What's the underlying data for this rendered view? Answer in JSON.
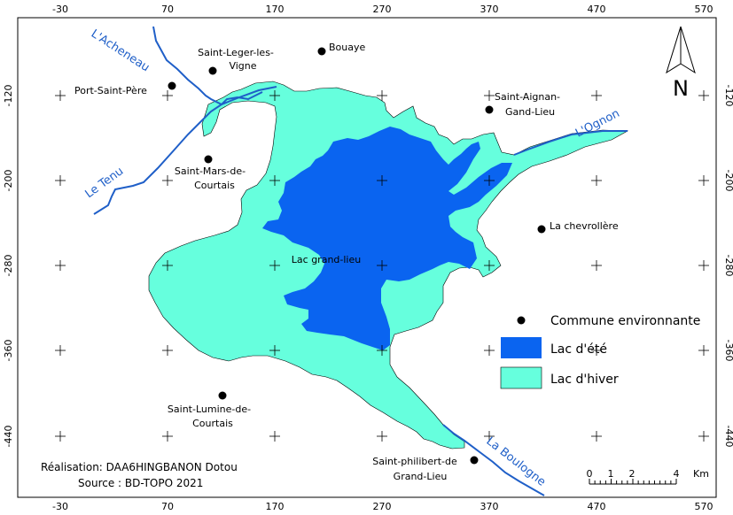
{
  "axes": {
    "x_ticks": [
      "-30",
      "70",
      "170",
      "270",
      "370",
      "470",
      "570"
    ],
    "y_ticks": [
      "-120",
      "-200",
      "-280",
      "-360",
      "-440"
    ]
  },
  "rivers": {
    "acheneau": "L'Acheneau",
    "tenu": "Le Tenu",
    "ognon": "L'Ognon",
    "boulogne": "La Boulogne"
  },
  "communes": [
    {
      "name_lines": [
        "Saint-Leger-les-",
        "Vigne"
      ]
    },
    {
      "name_lines": [
        "Bouaye"
      ]
    },
    {
      "name_lines": [
        "Port-Saint-Père"
      ]
    },
    {
      "name_lines": [
        "Saint-Aignan-",
        "Gand-Lieu"
      ]
    },
    {
      "name_lines": [
        "Saint-Mars-de-",
        "Courtais"
      ]
    },
    {
      "name_lines": [
        "La chevrollère"
      ]
    },
    {
      "name_lines": [
        "Saint-Lumine-de-",
        "Courtais"
      ]
    },
    {
      "name_lines": [
        "Saint-philibert-de",
        "Grand-Lieu"
      ]
    }
  ],
  "lake_label": "Lac grand-lieu",
  "legend": {
    "commune": "Commune environnante",
    "summer": "Lac d'été",
    "winter": "Lac d'hiver"
  },
  "north_label": "N",
  "scale": {
    "ticks": [
      "0",
      "1",
      "2",
      "4"
    ],
    "unit": "Km"
  },
  "credits": {
    "line1": "Réalisation: DAA6HINGBANON Dotou",
    "line2": "Source : BD-TOPO 2021"
  },
  "colors": {
    "summer_lake": "#0a64f0",
    "winter_lake": "#66ffdd",
    "river": "#1f5fc8",
    "commune_dot": "#000000"
  }
}
